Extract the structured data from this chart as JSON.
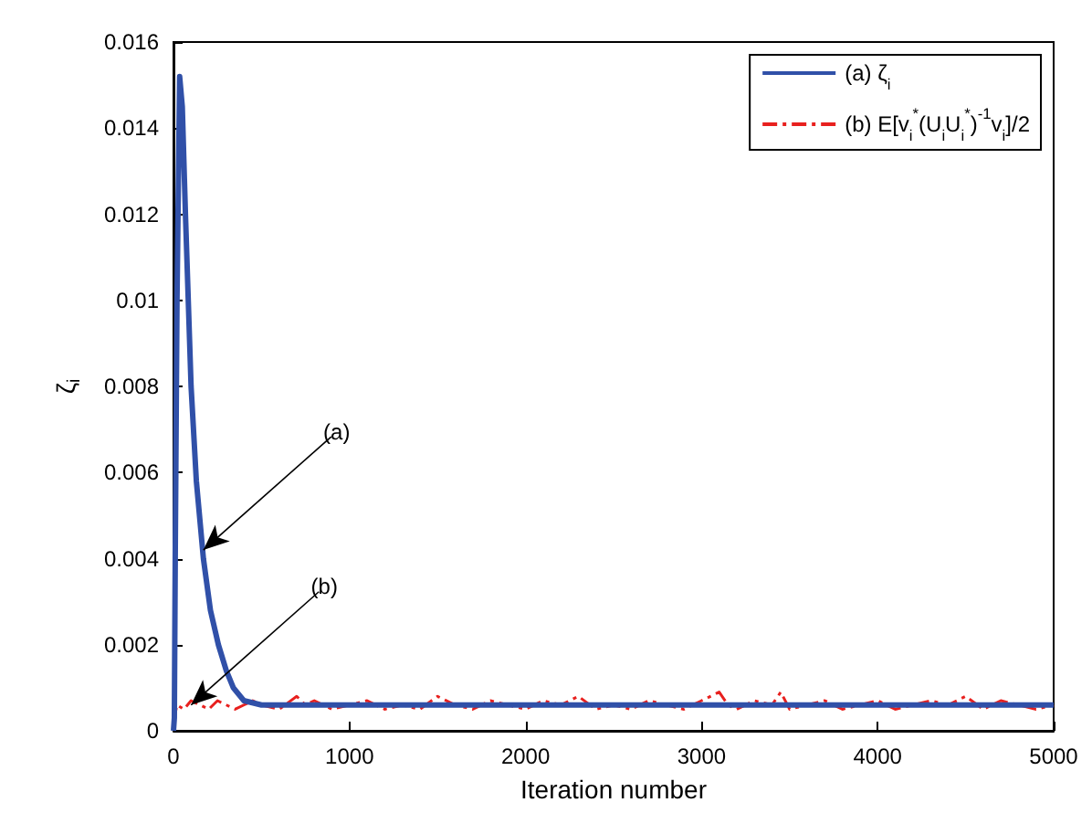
{
  "chart_data": {
    "type": "line",
    "xlabel": "Iteration number",
    "ylabel": "ζ$_{i}$",
    "xlim": [
      0,
      5000
    ],
    "xticks": [
      0,
      1000,
      2000,
      3000,
      4000,
      5000
    ],
    "ylim": [
      0,
      0.016
    ],
    "yticks": [
      0,
      0.002,
      0.004,
      0.006,
      0.008,
      0.01,
      0.012,
      0.014,
      0.016
    ],
    "grid": false,
    "legend": "top right",
    "marker": "none",
    "series": [
      {
        "name": "(a) ζ$_{i}$",
        "color": "#3050a8",
        "line_style": "solid",
        "x": [
          0,
          5,
          10,
          20,
          35,
          50,
          68,
          100,
          130,
          170,
          210,
          255,
          300,
          340,
          400,
          500,
          1000,
          2000,
          3000,
          4000,
          5000
        ],
        "values": [
          0,
          0.0003,
          0.004,
          0.01,
          0.0152,
          0.0145,
          0.012,
          0.008,
          0.0058,
          0.004,
          0.0028,
          0.002,
          0.0014,
          0.001,
          0.0007,
          0.0006,
          0.0006,
          0.0006,
          0.0006,
          0.0006,
          0.0006
        ]
      },
      {
        "name": "(b) E[v$_{i}$$^{*}$(U$_{i}$U$_{i}$$^{*}$)$^{-1}$v$_{i}$]/2",
        "color": "#e8201e",
        "line_style": "dashed",
        "x": [
          0,
          20,
          60,
          100,
          150,
          200,
          250,
          300,
          350,
          400,
          450,
          500,
          600,
          700,
          750,
          800,
          900,
          1000,
          1100,
          1200,
          1300,
          1400,
          1500,
          1600,
          1700,
          1800,
          1900,
          2000,
          2100,
          2200,
          2300,
          2400,
          2500,
          2600,
          2700,
          2800,
          2900,
          3000,
          3100,
          3150,
          3200,
          3300,
          3400,
          3450,
          3500,
          3600,
          3700,
          3800,
          3900,
          4000,
          4100,
          4200,
          4300,
          4400,
          4500,
          4600,
          4700,
          4800,
          4900,
          5000
        ],
        "values": [
          0.0002,
          0.0006,
          0.0005,
          0.0007,
          0.0006,
          0.0005,
          0.0007,
          0.0006,
          0.0005,
          0.0006,
          0.0007,
          0.0006,
          0.0005,
          0.0008,
          0.0006,
          0.0007,
          0.0005,
          0.0006,
          0.0007,
          0.0005,
          0.0006,
          0.0005,
          0.0008,
          0.0006,
          0.0005,
          0.0007,
          0.0006,
          0.0005,
          0.0007,
          0.0006,
          0.0008,
          0.0005,
          0.0006,
          0.0005,
          0.0007,
          0.0006,
          0.0005,
          0.0007,
          0.0009,
          0.0006,
          0.0005,
          0.0007,
          0.0006,
          0.0009,
          0.0005,
          0.0006,
          0.0007,
          0.0005,
          0.0006,
          0.0007,
          0.0005,
          0.0006,
          0.0007,
          0.0006,
          0.0008,
          0.0005,
          0.0007,
          0.0006,
          0.0005,
          0.0006
        ]
      }
    ],
    "annotations": [
      {
        "text": "(a)",
        "x": 170,
        "y": 0.0042
      },
      {
        "text": "(b)",
        "x": 100,
        "y": 0.0006
      }
    ]
  }
}
